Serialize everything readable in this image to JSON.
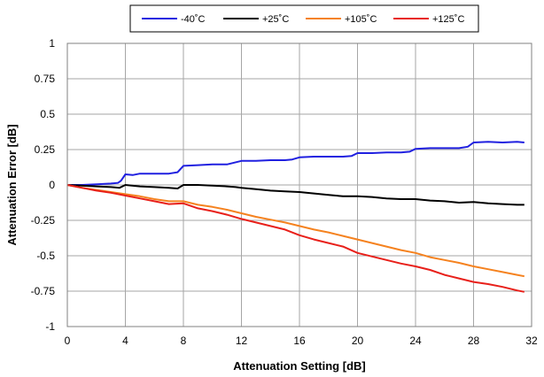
{
  "chart_data": {
    "type": "line",
    "title": "",
    "xlabel": "Attenuation Setting [dB]",
    "ylabel": "Attenuation Error [dB]",
    "xlim": [
      0,
      32
    ],
    "ylim": [
      -1,
      1
    ],
    "xticks": [
      "0",
      "4",
      "8",
      "12",
      "16",
      "20",
      "24",
      "28",
      "32"
    ],
    "yticks": [
      "1",
      "0.75",
      "0.5",
      "0.25",
      "0",
      "-0.25",
      "-0.5",
      "-0.75",
      "-1"
    ],
    "grid": true,
    "legend_position": "top-center",
    "series": [
      {
        "name": "-40˚C",
        "color": "#2020e0",
        "points": [
          [
            0,
            0
          ],
          [
            1,
            0.0
          ],
          [
            2,
            0.005
          ],
          [
            3,
            0.01
          ],
          [
            3.5,
            0.015
          ],
          [
            3.7,
            0.03
          ],
          [
            4,
            0.075
          ],
          [
            4.5,
            0.07
          ],
          [
            5,
            0.08
          ],
          [
            6,
            0.08
          ],
          [
            7,
            0.08
          ],
          [
            7.6,
            0.09
          ],
          [
            8,
            0.135
          ],
          [
            9,
            0.14
          ],
          [
            10,
            0.145
          ],
          [
            11,
            0.145
          ],
          [
            12,
            0.17
          ],
          [
            13,
            0.17
          ],
          [
            14,
            0.175
          ],
          [
            15,
            0.175
          ],
          [
            15.5,
            0.18
          ],
          [
            16,
            0.195
          ],
          [
            17,
            0.2
          ],
          [
            18,
            0.2
          ],
          [
            19,
            0.2
          ],
          [
            19.6,
            0.205
          ],
          [
            20,
            0.225
          ],
          [
            21,
            0.225
          ],
          [
            22,
            0.23
          ],
          [
            23,
            0.23
          ],
          [
            23.6,
            0.235
          ],
          [
            24,
            0.255
          ],
          [
            25,
            0.26
          ],
          [
            26,
            0.26
          ],
          [
            27,
            0.26
          ],
          [
            27.6,
            0.27
          ],
          [
            28,
            0.3
          ],
          [
            29,
            0.305
          ],
          [
            30,
            0.3
          ],
          [
            31,
            0.305
          ],
          [
            31.5,
            0.3
          ]
        ]
      },
      {
        "name": "+25˚C",
        "color": "#000000",
        "points": [
          [
            0,
            0
          ],
          [
            1,
            -0.005
          ],
          [
            2,
            -0.01
          ],
          [
            3,
            -0.015
          ],
          [
            3.6,
            -0.02
          ],
          [
            4,
            0.0
          ],
          [
            5,
            -0.01
          ],
          [
            6,
            -0.015
          ],
          [
            7,
            -0.02
          ],
          [
            7.6,
            -0.025
          ],
          [
            8,
            0.0
          ],
          [
            9,
            0.0
          ],
          [
            10,
            -0.005
          ],
          [
            11,
            -0.01
          ],
          [
            11.6,
            -0.015
          ],
          [
            12,
            -0.02
          ],
          [
            13,
            -0.03
          ],
          [
            14,
            -0.04
          ],
          [
            15,
            -0.045
          ],
          [
            16,
            -0.05
          ],
          [
            17,
            -0.06
          ],
          [
            18,
            -0.07
          ],
          [
            19,
            -0.08
          ],
          [
            20,
            -0.08
          ],
          [
            21,
            -0.085
          ],
          [
            22,
            -0.095
          ],
          [
            23,
            -0.1
          ],
          [
            24,
            -0.1
          ],
          [
            25,
            -0.11
          ],
          [
            26,
            -0.115
          ],
          [
            27,
            -0.125
          ],
          [
            28,
            -0.12
          ],
          [
            29,
            -0.13
          ],
          [
            30,
            -0.135
          ],
          [
            31,
            -0.14
          ],
          [
            31.5,
            -0.14
          ]
        ]
      },
      {
        "name": "+105˚C",
        "color": "#f5821f",
        "points": [
          [
            0,
            0
          ],
          [
            1,
            -0.02
          ],
          [
            2,
            -0.035
          ],
          [
            3,
            -0.05
          ],
          [
            4,
            -0.065
          ],
          [
            5,
            -0.08
          ],
          [
            6,
            -0.1
          ],
          [
            7,
            -0.115
          ],
          [
            8,
            -0.115
          ],
          [
            9,
            -0.14
          ],
          [
            10,
            -0.155
          ],
          [
            11,
            -0.175
          ],
          [
            12,
            -0.2
          ],
          [
            13,
            -0.225
          ],
          [
            14,
            -0.245
          ],
          [
            15,
            -0.265
          ],
          [
            16,
            -0.29
          ],
          [
            17,
            -0.315
          ],
          [
            18,
            -0.335
          ],
          [
            19,
            -0.36
          ],
          [
            20,
            -0.385
          ],
          [
            21,
            -0.41
          ],
          [
            22,
            -0.435
          ],
          [
            23,
            -0.46
          ],
          [
            24,
            -0.48
          ],
          [
            25,
            -0.51
          ],
          [
            26,
            -0.53
          ],
          [
            27,
            -0.55
          ],
          [
            28,
            -0.575
          ],
          [
            29,
            -0.595
          ],
          [
            30,
            -0.615
          ],
          [
            31,
            -0.635
          ],
          [
            31.5,
            -0.645
          ]
        ]
      },
      {
        "name": "+125˚C",
        "color": "#e8201a",
        "points": [
          [
            0,
            0
          ],
          [
            1,
            -0.02
          ],
          [
            2,
            -0.04
          ],
          [
            3,
            -0.055
          ],
          [
            4,
            -0.075
          ],
          [
            5,
            -0.095
          ],
          [
            6,
            -0.115
          ],
          [
            7,
            -0.135
          ],
          [
            8,
            -0.13
          ],
          [
            9,
            -0.165
          ],
          [
            10,
            -0.185
          ],
          [
            11,
            -0.21
          ],
          [
            12,
            -0.24
          ],
          [
            13,
            -0.265
          ],
          [
            14,
            -0.29
          ],
          [
            15,
            -0.315
          ],
          [
            16,
            -0.355
          ],
          [
            17,
            -0.385
          ],
          [
            18,
            -0.41
          ],
          [
            19,
            -0.435
          ],
          [
            20,
            -0.48
          ],
          [
            21,
            -0.505
          ],
          [
            22,
            -0.53
          ],
          [
            23,
            -0.555
          ],
          [
            24,
            -0.575
          ],
          [
            25,
            -0.6
          ],
          [
            26,
            -0.635
          ],
          [
            27,
            -0.66
          ],
          [
            28,
            -0.685
          ],
          [
            29,
            -0.7
          ],
          [
            30,
            -0.72
          ],
          [
            31,
            -0.745
          ],
          [
            31.5,
            -0.755
          ]
        ]
      }
    ]
  }
}
